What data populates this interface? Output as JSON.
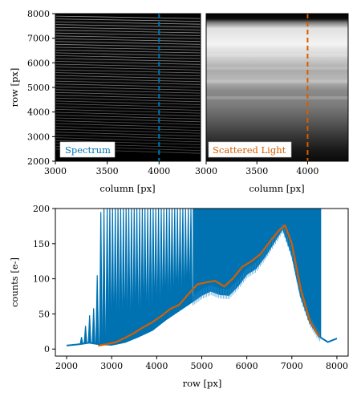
{
  "colors": {
    "spectrum": "#0072b2",
    "scattered": "#d55e00",
    "axis": "#000000"
  },
  "chart_data": [
    {
      "type": "heatmap",
      "panel": "top-left",
      "label": "Spectrum",
      "xlabel": "column [px]",
      "ylabel": "row [px]",
      "xlim": [
        3000,
        4400
      ],
      "ylim": [
        2000,
        8000
      ],
      "xticks": [
        "3000",
        "3500",
        "4000"
      ],
      "yticks": [
        "2000",
        "3000",
        "4000",
        "5000",
        "6000",
        "7000",
        "8000"
      ],
      "cut_column": 4000,
      "cut_style": "dashed",
      "colormap": "gray",
      "legend_position": "bottom-left"
    },
    {
      "type": "heatmap",
      "panel": "top-right",
      "label": "Scattered Light",
      "xlabel": "column [px]",
      "xlim": [
        3000,
        4400
      ],
      "ylim": [
        2000,
        8000
      ],
      "xticks": [
        "3000",
        "3500",
        "4000"
      ],
      "cut_column": 4000,
      "cut_style": "dashed",
      "colormap": "gray",
      "legend_position": "bottom-left"
    },
    {
      "type": "line",
      "panel": "bottom",
      "xlabel": "row [px]",
      "ylabel": "counts [e-]",
      "xlim": [
        1750,
        8250
      ],
      "ylim": [
        -10,
        200
      ],
      "xticks": [
        "2000",
        "3000",
        "4000",
        "5000",
        "6000",
        "7000",
        "8000"
      ],
      "yticks": [
        "0",
        "50",
        "100",
        "150",
        "200"
      ],
      "series": [
        {
          "color": "#0072b2",
          "x": [
            2000,
            2300,
            2500,
            2700,
            3000,
            3300,
            3600,
            3900,
            4200,
            4500,
            4800,
            5000,
            5200,
            5400,
            5600,
            5800,
            6000,
            6200,
            6400,
            6600,
            6800,
            7000,
            7200,
            7400,
            7600,
            7800,
            8000
          ],
          "values": [
            5,
            7,
            9,
            7,
            6,
            10,
            18,
            27,
            42,
            55,
            68,
            77,
            83,
            78,
            77,
            90,
            107,
            115,
            132,
            152,
            172,
            135,
            75,
            38,
            18,
            10,
            15
          ],
          "peaks": [
            {
              "x": 2330,
              "y": 17
            },
            {
              "x": 2420,
              "y": 33
            },
            {
              "x": 2510,
              "y": 48
            },
            {
              "x": 2600,
              "y": 58
            },
            {
              "x": 2680,
              "y": 105
            },
            {
              "x": 2760,
              "y": 195
            },
            {
              "x": 2830,
              "y": 200
            },
            {
              "x": 2900,
              "y": 200
            },
            {
              "x": 2960,
              "y": 200
            },
            {
              "x": 3020,
              "y": 200
            },
            {
              "x": 3080,
              "y": 200
            },
            {
              "x": 3140,
              "y": 200
            },
            {
              "x": 3200,
              "y": 200
            },
            {
              "x": 3260,
              "y": 200
            },
            {
              "x": 3320,
              "y": 200
            },
            {
              "x": 3380,
              "y": 200
            },
            {
              "x": 3440,
              "y": 200
            },
            {
              "x": 3500,
              "y": 200
            },
            {
              "x": 3560,
              "y": 200
            },
            {
              "x": 3620,
              "y": 200
            },
            {
              "x": 3680,
              "y": 200
            },
            {
              "x": 3740,
              "y": 200
            },
            {
              "x": 3800,
              "y": 200
            },
            {
              "x": 3860,
              "y": 200
            },
            {
              "x": 3920,
              "y": 200
            },
            {
              "x": 3980,
              "y": 200
            },
            {
              "x": 4040,
              "y": 200
            },
            {
              "x": 4100,
              "y": 200
            },
            {
              "x": 4160,
              "y": 200
            },
            {
              "x": 4220,
              "y": 200
            },
            {
              "x": 4280,
              "y": 200
            },
            {
              "x": 4340,
              "y": 200
            },
            {
              "x": 4400,
              "y": 200
            },
            {
              "x": 4460,
              "y": 200
            },
            {
              "x": 4520,
              "y": 200
            },
            {
              "x": 4580,
              "y": 200
            },
            {
              "x": 4640,
              "y": 200
            },
            {
              "x": 4700,
              "y": 200
            },
            {
              "x": 4760,
              "y": 200
            }
          ],
          "dense_region": [
            4800,
            7650
          ]
        },
        {
          "color": "#d55e00",
          "x": [
            2700,
            2900,
            3100,
            3300,
            3500,
            3700,
            3900,
            4100,
            4300,
            4500,
            4700,
            4900,
            5100,
            5300,
            5500,
            5700,
            5900,
            6100,
            6300,
            6500,
            6700,
            6850,
            7000,
            7200,
            7400,
            7600
          ],
          "values": [
            5,
            7,
            10,
            16,
            23,
            31,
            38,
            47,
            57,
            63,
            78,
            92,
            95,
            97,
            89,
            101,
            117,
            125,
            135,
            152,
            168,
            176,
            150,
            85,
            40,
            18
          ]
        }
      ]
    }
  ]
}
